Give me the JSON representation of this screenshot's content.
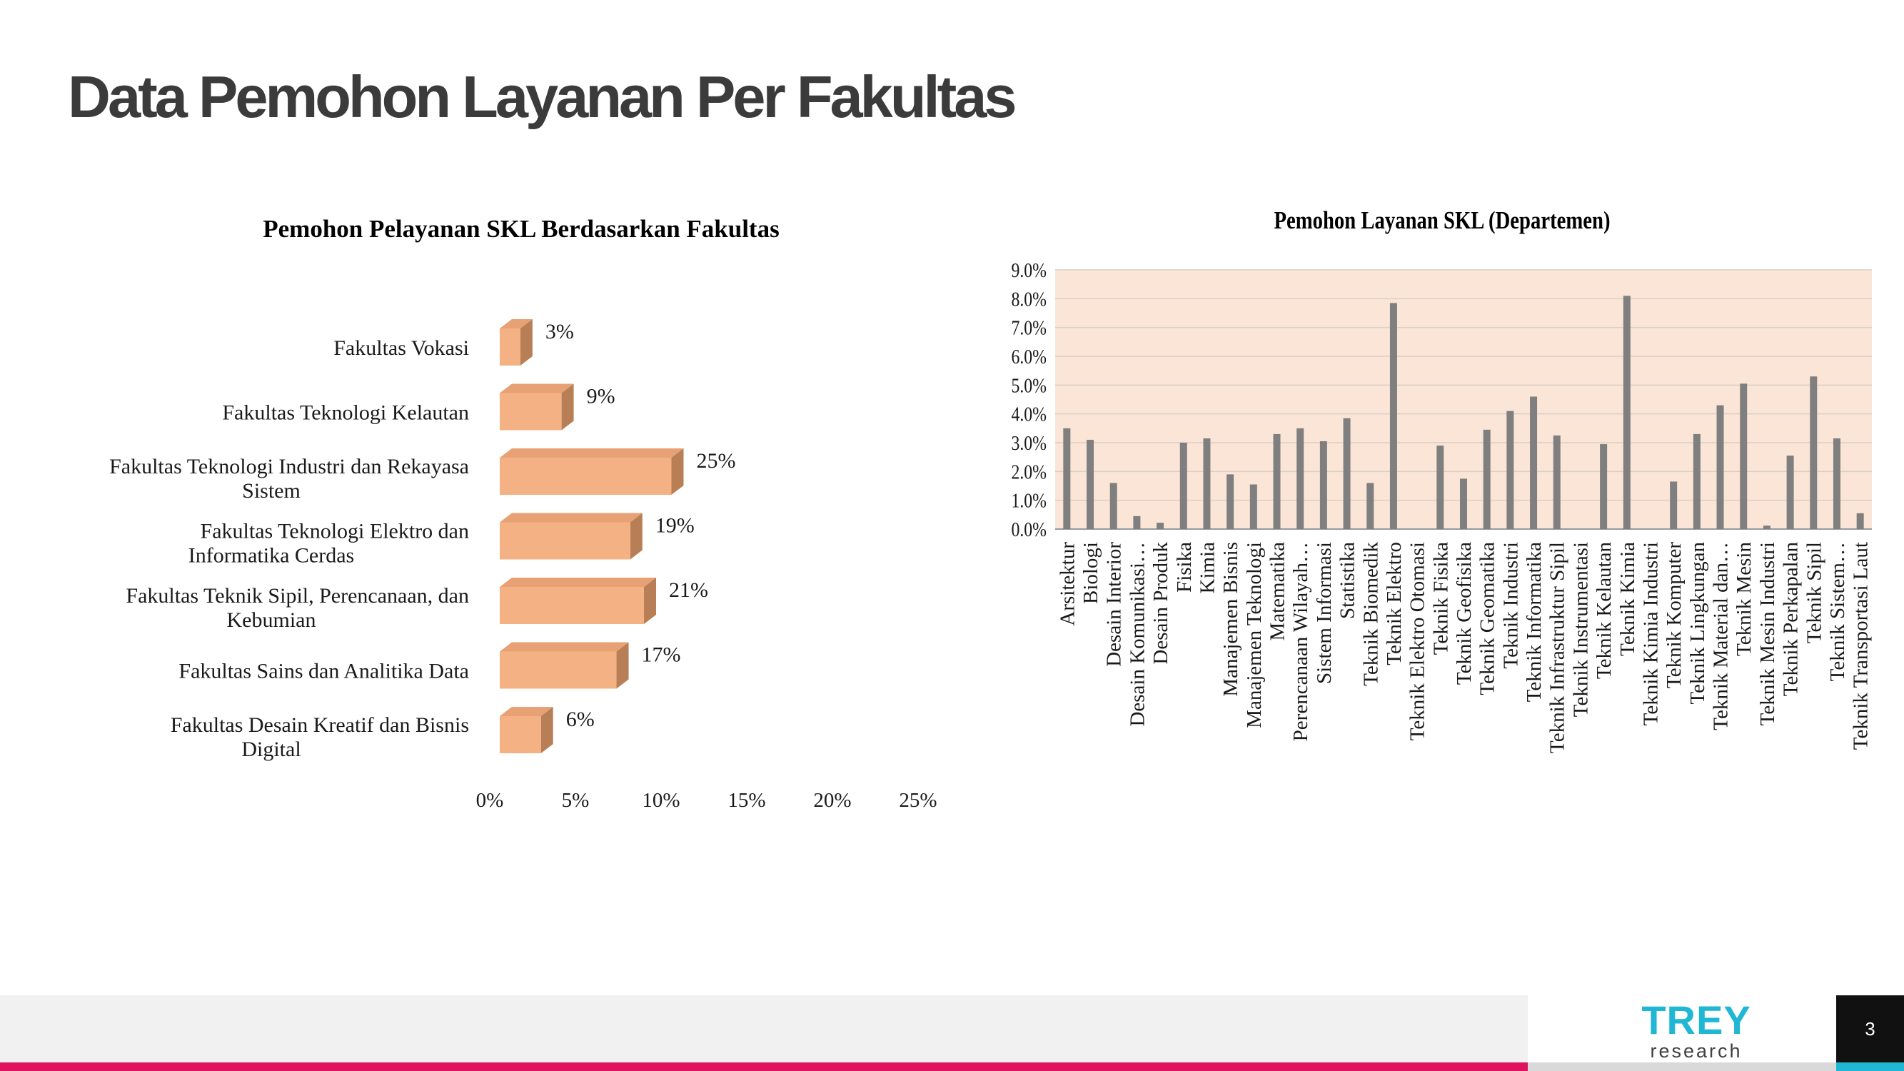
{
  "slide": {
    "title": "Data Pemohon Layanan Per Fakultas",
    "page_number": "3",
    "logo": {
      "top": "TREY",
      "bottom": "research"
    }
  },
  "colors": {
    "bar_face": "#f4b183",
    "bar_top": "#e8a174",
    "bar_side": "#b87f57",
    "plot_bg": "#fbe5d6",
    "dept_bar": "#7f7f7f",
    "accent_magenta": "#e0115f",
    "accent_cyan": "#1fb7d4"
  },
  "chart_data": [
    {
      "type": "bar",
      "orientation": "horizontal",
      "style": "3d",
      "title": "Pemohon Pelayanan SKL Berdasarkan Fakultas",
      "categories": [
        "Fakultas Vokasi",
        "Fakultas Teknologi Kelautan",
        "Fakultas Teknologi Industri dan Rekayasa Sistem",
        "Fakultas Teknologi Elektro dan Informatika Cerdas",
        "Fakultas Teknik Sipil, Perencanaan, dan Kebumian",
        "Fakultas Sains dan Analitika Data",
        "Fakultas Desain Kreatif dan Bisnis Digital"
      ],
      "values": [
        3,
        9,
        25,
        19,
        21,
        17,
        6
      ],
      "data_labels": [
        "3%",
        "9%",
        "25%",
        "19%",
        "21%",
        "17%",
        "6%"
      ],
      "xlim": [
        0,
        25
      ],
      "xticks": [
        "0%",
        "5%",
        "10%",
        "15%",
        "20%",
        "25%"
      ],
      "xlabel": "",
      "ylabel": "",
      "grid": false,
      "legend": "none"
    },
    {
      "type": "bar",
      "title": "Pemohon Layanan SKL (Departemen)",
      "categories": [
        "Arsitektur",
        "Biologi",
        "Desain Interior",
        "Desain Komunikasi…",
        "Desain Produk",
        "Fisika",
        "Kimia",
        "Manajemen Bisnis",
        "Manajemen Teknologi",
        "Matematika",
        "Perencanaan Wilayah…",
        "Sistem Informasi",
        "Statistika",
        "Teknik Biomedik",
        "Teknik Elektro",
        "Teknik Elektro Otomasi",
        "Teknik Fisika",
        "Teknik Geofisika",
        "Teknik Geomatika",
        "Teknik Industri",
        "Teknik Informatika",
        "Teknik Infrastruktur Sipil",
        "Teknik Instrumentasi",
        "Teknik Kelautan",
        "Teknik Kimia",
        "Teknik Kimia Industri",
        "Teknik Komputer",
        "Teknik Lingkungan",
        "Teknik Material dan…",
        "Teknik Mesin",
        "Teknik Mesin Industri",
        "Teknik Perkapalan",
        "Teknik Sipil",
        "Teknik Sistem…",
        "Teknik Transportasi Laut"
      ],
      "values": [
        3.5,
        3.1,
        1.6,
        0.45,
        0.22,
        3.0,
        3.15,
        1.9,
        1.55,
        3.3,
        3.5,
        3.05,
        3.85,
        1.6,
        7.85,
        0.0,
        2.9,
        1.75,
        3.45,
        4.1,
        4.6,
        3.25,
        0.0,
        2.95,
        8.1,
        0.0,
        1.65,
        3.3,
        4.3,
        5.05,
        0.12,
        2.55,
        5.3,
        3.15,
        0.55
      ],
      "ylim": [
        0,
        9
      ],
      "yticks": [
        "0.0%",
        "1.0%",
        "2.0%",
        "3.0%",
        "4.0%",
        "5.0%",
        "6.0%",
        "7.0%",
        "8.0%",
        "9.0%"
      ],
      "xlabel": "",
      "ylabel": "",
      "grid": true,
      "legend": "none"
    }
  ]
}
